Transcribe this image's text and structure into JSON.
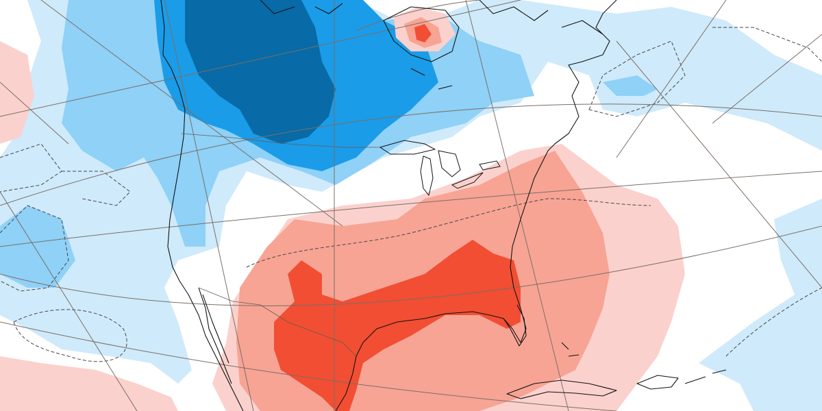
{
  "map": {
    "type": "anomaly-map",
    "region": "North America",
    "palette": {
      "warm_1": "#fbd1cd",
      "warm_2": "#f7a494",
      "warm_3": "#f14e33",
      "cold_1": "#cfeafb",
      "cold_2": "#8fd1f7",
      "cold_3": "#1a9ce8",
      "cold_4": "#086aa6",
      "neutral": "#ffffff",
      "coastline": "#111111",
      "grid": "#7a6e66"
    },
    "grid_lines": true,
    "contours": "dashed",
    "legend": "none"
  }
}
